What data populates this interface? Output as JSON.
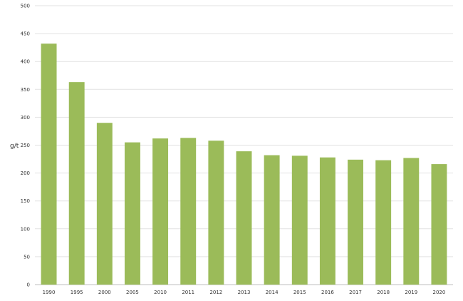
{
  "chart_data": {
    "type": "bar",
    "categories": [
      "1990",
      "1995",
      "2000",
      "2005",
      "2010",
      "2011",
      "2012",
      "2013",
      "2014",
      "2015",
      "2016",
      "2017",
      "2018",
      "2019",
      "2020"
    ],
    "values": [
      432,
      363,
      290,
      255,
      262,
      263,
      258,
      239,
      232,
      231,
      228,
      224,
      223,
      227,
      216
    ],
    "ylabel": "g/t",
    "xlabel": "",
    "title": "",
    "ylim": [
      0,
      500
    ],
    "yticks": [
      0,
      50,
      100,
      150,
      200,
      250,
      300,
      350,
      400,
      450,
      500
    ],
    "grid": true,
    "legend": "none",
    "bar_color": "#9bbb59"
  }
}
